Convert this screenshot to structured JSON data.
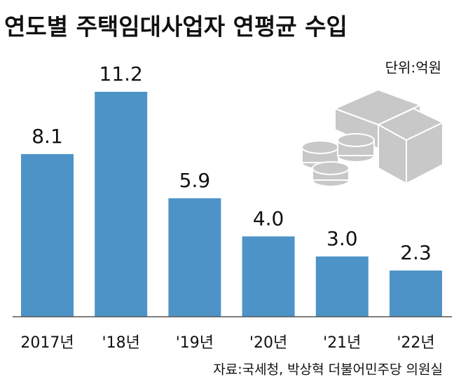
{
  "chart_data": {
    "type": "bar",
    "title": "연도별 주택임대사업자 연평균 수입",
    "unit": "단위:억원",
    "source": "자료:국세청, 박상혁 더불어민주당 의원실",
    "categories": [
      "2017년",
      "'18년",
      "'19년",
      "'20년",
      "'21년",
      "'22년"
    ],
    "values": [
      8.1,
      11.2,
      5.9,
      4,
      3,
      2.3
    ],
    "value_labels": [
      "8.1",
      "11.2",
      "5.9",
      "4.0",
      "3.0",
      "2.3"
    ],
    "color": "#4d93c8"
  }
}
